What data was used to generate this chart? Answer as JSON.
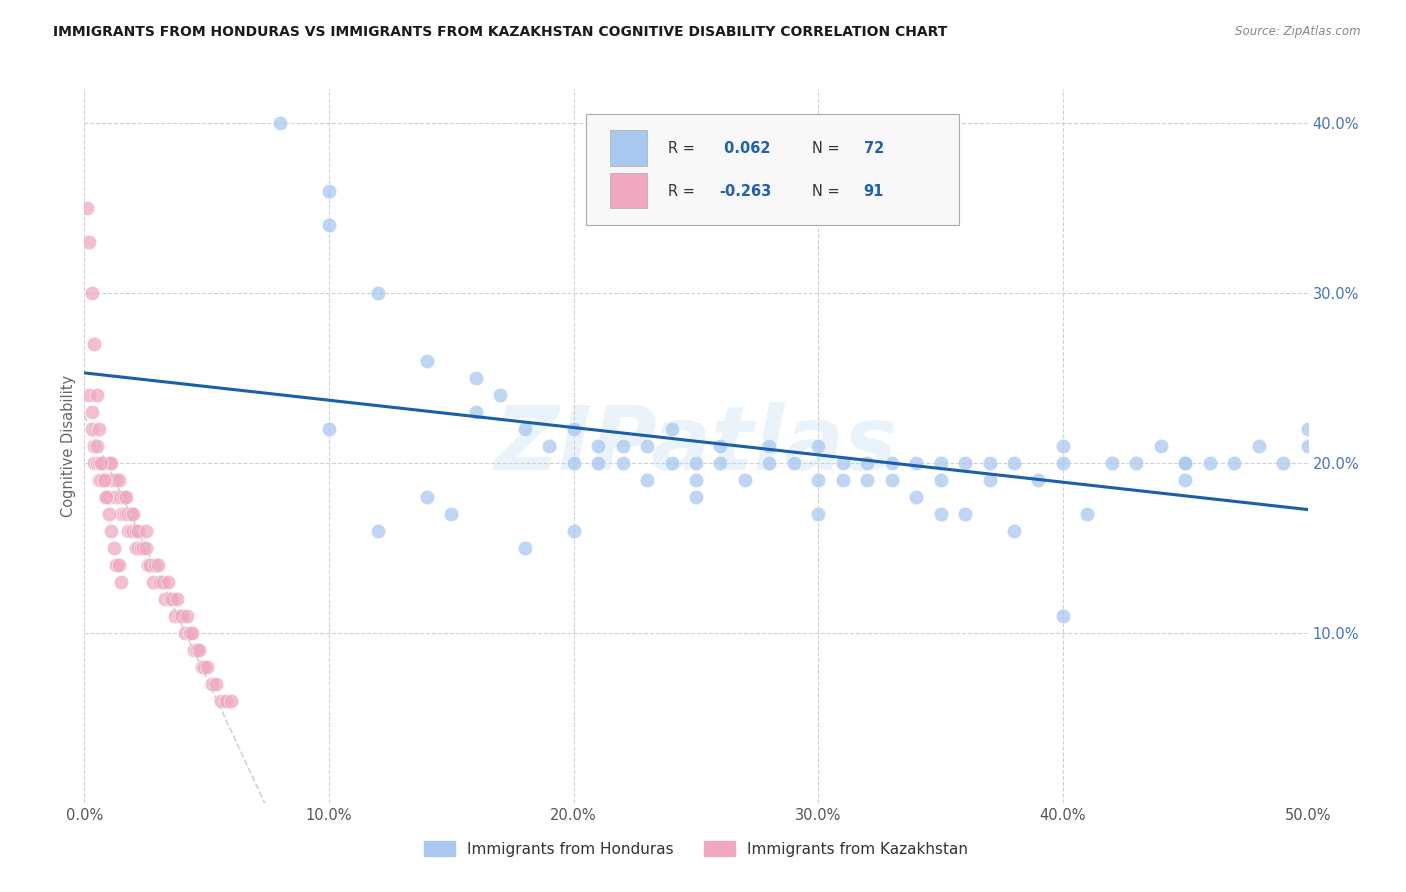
{
  "title": "IMMIGRANTS FROM HONDURAS VS IMMIGRANTS FROM KAZAKHSTAN COGNITIVE DISABILITY CORRELATION CHART",
  "source": "Source: ZipAtlas.com",
  "ylabel": "Cognitive Disability",
  "xlim": [
    0.0,
    0.5
  ],
  "ylim": [
    0.0,
    0.42
  ],
  "xticks": [
    0.0,
    0.1,
    0.2,
    0.3,
    0.4,
    0.5
  ],
  "xtick_labels": [
    "0.0%",
    "10.0%",
    "20.0%",
    "30.0%",
    "40.0%",
    "50.0%"
  ],
  "yticks": [
    0.1,
    0.2,
    0.3,
    0.4
  ],
  "ytick_labels": [
    "10.0%",
    "20.0%",
    "30.0%",
    "40.0%"
  ],
  "legend_label1": "Immigrants from Honduras",
  "legend_label2": "Immigrants from Kazakhstan",
  "R1": 0.062,
  "N1": 72,
  "R2": -0.263,
  "N2": 91,
  "color1": "#a8c8f0",
  "color2": "#f0a8c0",
  "trend1_color": "#1a5fa8",
  "trend2_color": "#c83060",
  "watermark": "ZIPatlas",
  "bg_color": "#ffffff",
  "grid_color": "#cccccc",
  "honduras_x": [
    0.08,
    0.1,
    0.1,
    0.12,
    0.14,
    0.16,
    0.16,
    0.17,
    0.18,
    0.19,
    0.2,
    0.2,
    0.21,
    0.21,
    0.22,
    0.22,
    0.23,
    0.23,
    0.24,
    0.24,
    0.25,
    0.25,
    0.26,
    0.26,
    0.27,
    0.28,
    0.28,
    0.29,
    0.3,
    0.3,
    0.31,
    0.31,
    0.32,
    0.32,
    0.33,
    0.33,
    0.34,
    0.34,
    0.35,
    0.35,
    0.36,
    0.36,
    0.37,
    0.37,
    0.38,
    0.38,
    0.39,
    0.4,
    0.4,
    0.41,
    0.42,
    0.43,
    0.44,
    0.45,
    0.45,
    0.46,
    0.47,
    0.48,
    0.49,
    0.5,
    0.1,
    0.12,
    0.14,
    0.15,
    0.18,
    0.2,
    0.25,
    0.3,
    0.35,
    0.4,
    0.45,
    0.5
  ],
  "honduras_y": [
    0.4,
    0.36,
    0.34,
    0.3,
    0.26,
    0.25,
    0.23,
    0.24,
    0.22,
    0.21,
    0.22,
    0.2,
    0.21,
    0.2,
    0.21,
    0.2,
    0.21,
    0.19,
    0.22,
    0.2,
    0.2,
    0.19,
    0.21,
    0.2,
    0.19,
    0.21,
    0.2,
    0.2,
    0.21,
    0.19,
    0.2,
    0.19,
    0.2,
    0.19,
    0.2,
    0.19,
    0.2,
    0.18,
    0.2,
    0.19,
    0.2,
    0.17,
    0.2,
    0.19,
    0.2,
    0.16,
    0.19,
    0.2,
    0.21,
    0.17,
    0.2,
    0.2,
    0.21,
    0.2,
    0.19,
    0.2,
    0.2,
    0.21,
    0.2,
    0.21,
    0.22,
    0.16,
    0.18,
    0.17,
    0.15,
    0.16,
    0.18,
    0.17,
    0.17,
    0.11,
    0.2,
    0.22
  ],
  "kazakhstan_x": [
    0.002,
    0.003,
    0.003,
    0.004,
    0.004,
    0.005,
    0.005,
    0.006,
    0.006,
    0.007,
    0.007,
    0.008,
    0.008,
    0.009,
    0.009,
    0.01,
    0.01,
    0.01,
    0.011,
    0.011,
    0.012,
    0.012,
    0.013,
    0.013,
    0.014,
    0.014,
    0.015,
    0.015,
    0.016,
    0.016,
    0.017,
    0.017,
    0.018,
    0.018,
    0.019,
    0.019,
    0.02,
    0.02,
    0.021,
    0.021,
    0.022,
    0.022,
    0.023,
    0.024,
    0.025,
    0.025,
    0.026,
    0.027,
    0.028,
    0.029,
    0.03,
    0.031,
    0.032,
    0.033,
    0.034,
    0.035,
    0.036,
    0.037,
    0.038,
    0.039,
    0.04,
    0.041,
    0.042,
    0.043,
    0.044,
    0.045,
    0.046,
    0.047,
    0.048,
    0.049,
    0.05,
    0.052,
    0.054,
    0.056,
    0.058,
    0.06,
    0.001,
    0.002,
    0.003,
    0.004,
    0.005,
    0.006,
    0.007,
    0.008,
    0.009,
    0.01,
    0.011,
    0.012,
    0.013,
    0.014,
    0.015
  ],
  "kazakhstan_y": [
    0.24,
    0.23,
    0.22,
    0.21,
    0.2,
    0.21,
    0.2,
    0.2,
    0.19,
    0.2,
    0.19,
    0.2,
    0.19,
    0.18,
    0.19,
    0.2,
    0.19,
    0.18,
    0.2,
    0.19,
    0.19,
    0.18,
    0.19,
    0.18,
    0.19,
    0.18,
    0.18,
    0.17,
    0.18,
    0.17,
    0.18,
    0.17,
    0.17,
    0.16,
    0.17,
    0.16,
    0.17,
    0.16,
    0.16,
    0.15,
    0.16,
    0.15,
    0.15,
    0.15,
    0.16,
    0.15,
    0.14,
    0.14,
    0.13,
    0.14,
    0.14,
    0.13,
    0.13,
    0.12,
    0.13,
    0.12,
    0.12,
    0.11,
    0.12,
    0.11,
    0.11,
    0.1,
    0.11,
    0.1,
    0.1,
    0.09,
    0.09,
    0.09,
    0.08,
    0.08,
    0.08,
    0.07,
    0.07,
    0.06,
    0.06,
    0.06,
    0.35,
    0.33,
    0.3,
    0.27,
    0.24,
    0.22,
    0.2,
    0.19,
    0.18,
    0.17,
    0.16,
    0.15,
    0.14,
    0.14,
    0.13
  ]
}
